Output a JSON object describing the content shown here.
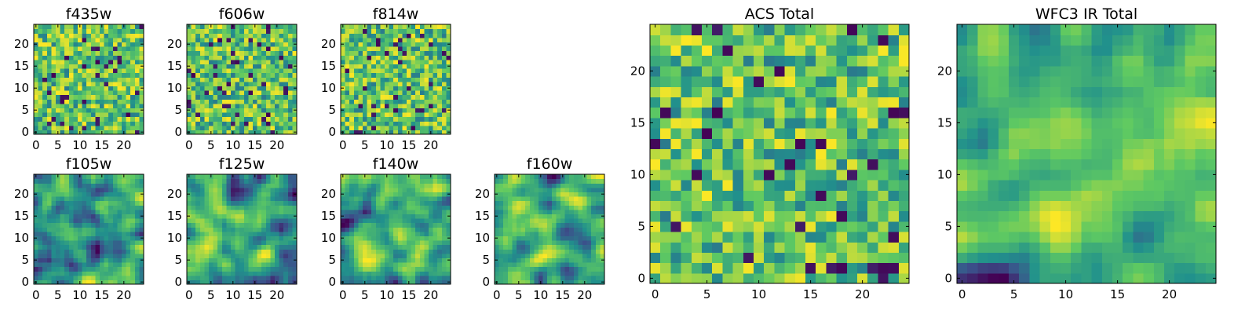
{
  "chart_data": [
    {
      "type": "heatmap",
      "title": "f435w",
      "grid_size": 25,
      "xticks": [
        "0",
        "5",
        "10",
        "15",
        "20"
      ],
      "yticks": [
        "0",
        "5",
        "10",
        "15",
        "20"
      ],
      "colormap": "viridis",
      "pattern": "fine-noise",
      "seed": 11
    },
    {
      "type": "heatmap",
      "title": "f606w",
      "grid_size": 25,
      "xticks": [
        "0",
        "5",
        "10",
        "15",
        "20"
      ],
      "yticks": [
        "0",
        "5",
        "10",
        "15",
        "20"
      ],
      "colormap": "viridis",
      "pattern": "fine-noise",
      "seed": 23
    },
    {
      "type": "heatmap",
      "title": "f814w",
      "grid_size": 25,
      "xticks": [
        "0",
        "5",
        "10",
        "15",
        "20"
      ],
      "yticks": [
        "0",
        "5",
        "10",
        "15",
        "20"
      ],
      "colormap": "viridis",
      "pattern": "fine-noise",
      "seed": 37
    },
    {
      "type": "heatmap",
      "title": "f105w",
      "grid_size": 25,
      "xticks": [
        "0",
        "5",
        "10",
        "15",
        "20"
      ],
      "yticks": [
        "0",
        "5",
        "10",
        "15",
        "20"
      ],
      "colormap": "viridis",
      "pattern": "smooth",
      "seed": 41
    },
    {
      "type": "heatmap",
      "title": "f125w",
      "grid_size": 25,
      "xticks": [
        "0",
        "5",
        "10",
        "15",
        "20"
      ],
      "yticks": [
        "0",
        "5",
        "10",
        "15",
        "20"
      ],
      "colormap": "viridis",
      "pattern": "smooth",
      "seed": 53
    },
    {
      "type": "heatmap",
      "title": "f140w",
      "grid_size": 25,
      "xticks": [
        "0",
        "5",
        "10",
        "15",
        "20"
      ],
      "yticks": [
        "0",
        "5",
        "10",
        "15",
        "20"
      ],
      "colormap": "viridis",
      "pattern": "smooth",
      "seed": 67
    },
    {
      "type": "heatmap",
      "title": "f160w",
      "grid_size": 25,
      "xticks": [
        "0",
        "5",
        "10",
        "15",
        "20"
      ],
      "yticks": [
        "0",
        "5",
        "10",
        "15",
        "20"
      ],
      "colormap": "viridis",
      "pattern": "smooth",
      "seed": 71
    },
    {
      "type": "heatmap",
      "title": "ACS Total",
      "grid_size": 25,
      "xticks": [
        "0",
        "5",
        "10",
        "15",
        "20"
      ],
      "yticks": [
        "0",
        "5",
        "10",
        "15",
        "20"
      ],
      "colormap": "viridis",
      "pattern": "fine-noise",
      "seed": 83
    },
    {
      "type": "heatmap",
      "title": "WFC3 IR Total",
      "grid_size": 25,
      "xticks": [
        "0",
        "5",
        "10",
        "15",
        "20"
      ],
      "yticks": [
        "0",
        "5",
        "10",
        "15",
        "20"
      ],
      "colormap": "viridis",
      "pattern": "smooth",
      "seed": 97
    }
  ],
  "colors": {
    "viridis": [
      "#440154",
      "#3b528b",
      "#21918c",
      "#5ec962",
      "#fde725"
    ],
    "axis": "#000000"
  }
}
